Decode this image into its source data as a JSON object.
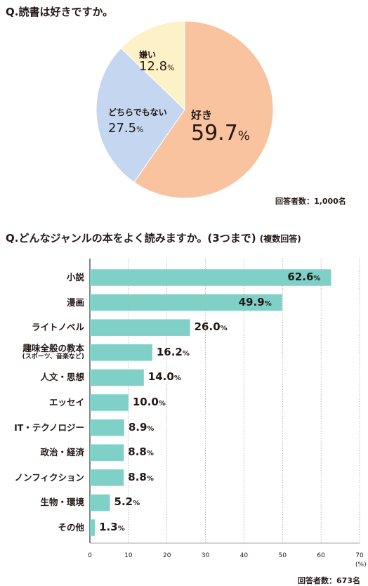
{
  "q1": {
    "title": "Q.読書は好きですか。",
    "respondents": "回答者数：1,000名"
  },
  "q2": {
    "title": "Q.どんなジャンルの本をよく読みますか。(3つまで)",
    "title_note": "(複数回答)",
    "respondents": "回答者数：673名",
    "x_unit": "(%)"
  },
  "colors": {
    "pie": [
      "#f8c39e",
      "#c5d6f0",
      "#fdf1c8"
    ],
    "bar": "#7fd0c7",
    "grid": "#888888"
  },
  "chart_data": [
    {
      "type": "pie",
      "title": "Q.読書は好きですか。",
      "slices": [
        {
          "label": "好き",
          "value": 59.7
        },
        {
          "label": "どちらでもない",
          "value": 27.5
        },
        {
          "label": "嫌い",
          "value": 12.8
        }
      ],
      "value_unit": "%"
    },
    {
      "type": "bar",
      "orientation": "horizontal",
      "title": "Q.どんなジャンルの本をよく読みますか。(3つまで)",
      "categories": [
        "小説",
        "漫画",
        "ライトノベル",
        "趣味全般の教本",
        "人文・思想",
        "エッセイ",
        "IT・テクノロジー",
        "政治・経済",
        "ノンフィクション",
        "生物・環境",
        "その他"
      ],
      "category_notes": [
        "",
        "",
        "",
        "(スポーツ、音楽など)",
        "",
        "",
        "",
        "",
        "",
        "",
        ""
      ],
      "values": [
        62.6,
        49.9,
        26.0,
        16.2,
        14.0,
        10.0,
        8.9,
        8.8,
        8.8,
        5.2,
        1.3
      ],
      "value_labels": [
        "62.6",
        "49.9",
        "26.0",
        "16.2",
        "14.0",
        "10.0",
        "8.9",
        "8.8",
        "8.8",
        "5.2",
        "1.3"
      ],
      "value_unit": "%",
      "xlim": [
        0,
        70
      ],
      "xticks": [
        "0",
        "10",
        "20",
        "30",
        "40",
        "50",
        "60",
        "70"
      ],
      "grid": true
    }
  ]
}
